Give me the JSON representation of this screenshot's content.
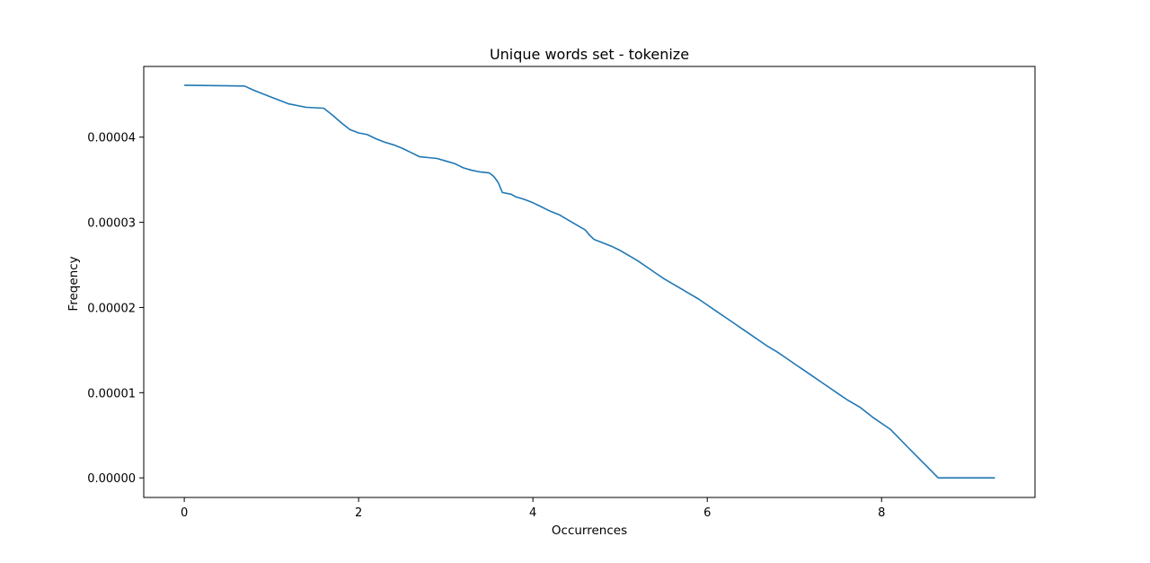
{
  "chart_data": {
    "type": "line",
    "title": "Unique words set - tokenize",
    "xlabel": "Occurrences",
    "ylabel": "Freqency",
    "xlim": [
      -0.465,
      9.76
    ],
    "ylim": [
      -2.3e-06,
      4.83e-05
    ],
    "x_ticks": [
      0,
      2,
      4,
      6,
      8
    ],
    "x_tick_labels": [
      "0",
      "2",
      "4",
      "6",
      "8"
    ],
    "y_ticks": [
      0.0,
      1e-05,
      2e-05,
      3e-05,
      4e-05
    ],
    "y_tick_labels": [
      "0.00000",
      "0.00001",
      "0.00002",
      "0.00003",
      "0.00004"
    ],
    "grid": false,
    "series": [
      {
        "color": "#1f77b4",
        "x": [
          0,
          0.69,
          0.8,
          1.0,
          1.2,
          1.4,
          1.6,
          1.7,
          1.8,
          1.9,
          2.0,
          2.1,
          2.2,
          2.3,
          2.4,
          2.5,
          2.6,
          2.7,
          2.8,
          2.9,
          3.0,
          3.1,
          3.2,
          3.3,
          3.4,
          3.5,
          3.55,
          3.6,
          3.65,
          3.75,
          3.8,
          3.9,
          4.0,
          4.1,
          4.2,
          4.3,
          4.4,
          4.5,
          4.6,
          4.65,
          4.7,
          4.8,
          4.9,
          5.0,
          5.1,
          5.2,
          5.3,
          5.4,
          5.5,
          5.6,
          5.7,
          5.8,
          5.9,
          6.0,
          6.1,
          6.2,
          6.3,
          6.4,
          6.5,
          6.6,
          6.7,
          6.8,
          6.9,
          7.0,
          7.1,
          7.2,
          7.3,
          7.4,
          7.5,
          7.6,
          7.75,
          7.9,
          8.1,
          8.3,
          8.65,
          9.3
        ],
        "y": [
          4.61e-05,
          4.6e-05,
          4.55e-05,
          4.47e-05,
          4.39e-05,
          4.35e-05,
          4.34e-05,
          4.26e-05,
          4.17e-05,
          4.09e-05,
          4.05e-05,
          4.03e-05,
          3.98e-05,
          3.94e-05,
          3.91e-05,
          3.87e-05,
          3.82e-05,
          3.77e-05,
          3.76e-05,
          3.75e-05,
          3.72e-05,
          3.69e-05,
          3.64e-05,
          3.61e-05,
          3.59e-05,
          3.58e-05,
          3.54e-05,
          3.47e-05,
          3.35e-05,
          3.33e-05,
          3.3e-05,
          3.27e-05,
          3.23e-05,
          3.18e-05,
          3.13e-05,
          3.09e-05,
          3.03e-05,
          2.97e-05,
          2.91e-05,
          2.85e-05,
          2.8e-05,
          2.76e-05,
          2.72e-05,
          2.67e-05,
          2.61e-05,
          2.55e-05,
          2.48e-05,
          2.41e-05,
          2.34e-05,
          2.28e-05,
          2.22e-05,
          2.16e-05,
          2.1e-05,
          2.03e-05,
          1.96e-05,
          1.89e-05,
          1.82e-05,
          1.75e-05,
          1.68e-05,
          1.61e-05,
          1.54e-05,
          1.48e-05,
          1.41e-05,
          1.34e-05,
          1.27e-05,
          1.2e-05,
          1.13e-05,
          1.06e-05,
          9.9e-06,
          9.2e-06,
          8.3e-06,
          7.1e-06,
          5.7e-06,
          3.6e-06,
          0.0,
          0.0
        ]
      }
    ]
  }
}
